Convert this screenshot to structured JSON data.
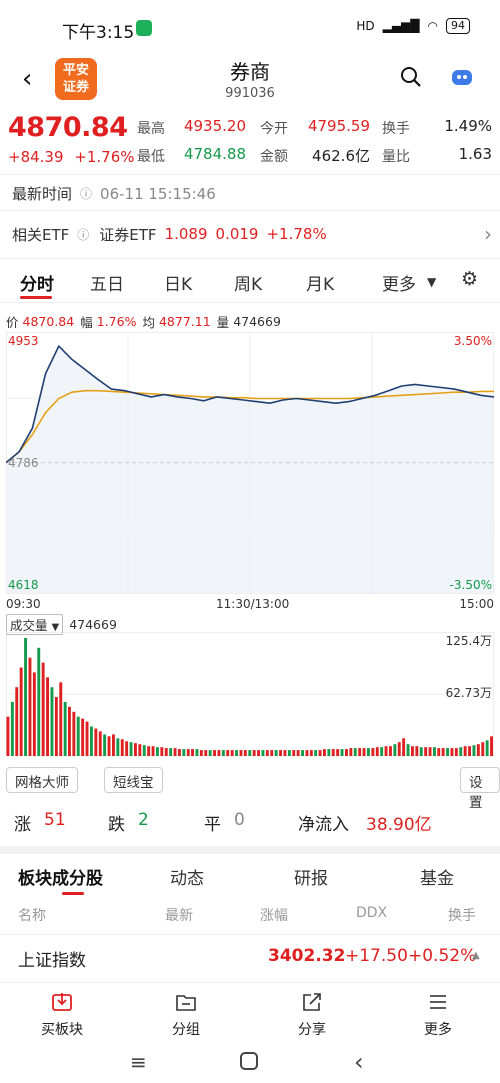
{
  "status_bar": {
    "time": "下午3:15",
    "network": "HD",
    "battery": "94"
  },
  "header": {
    "back": "‹",
    "logo_line1": "平安",
    "logo_line2": "证券",
    "title": "券商",
    "code": "991036"
  },
  "quote": {
    "price": "4870.84",
    "change": "+84.39",
    "change_pct": "+1.76%",
    "high_label": "最高",
    "high": "4935.20",
    "low_label": "最低",
    "low": "4784.88",
    "open_label": "今开",
    "open": "4795.59",
    "amount_label": "金额",
    "amount": "462.6亿",
    "turnover_label": "换手",
    "turnover": "1.49%",
    "volume_ratio_label": "量比",
    "volume_ratio": "1.63"
  },
  "update": {
    "label": "最新时间",
    "time": "06-11 15:15:46"
  },
  "etf": {
    "label": "相关ETF",
    "name": "证券ETF",
    "price": "1.089",
    "change": "0.019",
    "change_pct": "+1.78%"
  },
  "tabs": [
    "分时",
    "五日",
    "日K",
    "周K",
    "月K",
    "更多"
  ],
  "info_line": {
    "price_label": "价",
    "price": "4870.84",
    "range_label": "幅",
    "range": "1.76%",
    "avg_label": "均",
    "avg": "4877.11",
    "vol_label": "量",
    "vol": "474669"
  },
  "chart_data": {
    "type": "line",
    "y_top": "4953",
    "y_mid": "4786",
    "y_bottom": "4618",
    "pct_top": "3.50%",
    "pct_bottom": "-3.50%",
    "x_labels": [
      "09:30",
      "11:30/13:00",
      "15:00"
    ],
    "ylim": [
      4618,
      4953
    ],
    "prev_close": 4786,
    "price_series": [
      4786,
      4800,
      4830,
      4900,
      4935,
      4918,
      4905,
      4892,
      4880,
      4878,
      4874,
      4870,
      4873,
      4870,
      4868,
      4865,
      4870,
      4868,
      4866,
      4864,
      4862,
      4866,
      4868,
      4866,
      4864,
      4862,
      4864,
      4868,
      4872,
      4878,
      4884,
      4886,
      4884,
      4882,
      4880,
      4876,
      4872,
      4870
    ],
    "avg_series": [
      4786,
      4800,
      4822,
      4850,
      4868,
      4876,
      4878,
      4878,
      4877,
      4876,
      4875,
      4874,
      4873,
      4872,
      4871,
      4870,
      4870,
      4869,
      4869,
      4868,
      4868,
      4868,
      4868,
      4868,
      4868,
      4868,
      4868,
      4869,
      4870,
      4871,
      4872,
      4873,
      4874,
      4875,
      4876,
      4876,
      4877,
      4877
    ]
  },
  "volume": {
    "label": "成交量",
    "value": "474669",
    "max_label": "125.4万",
    "mid_label": "62.73万",
    "max_value": 1254000,
    "bars": [
      40,
      55,
      70,
      90,
      120,
      100,
      85,
      110,
      95,
      80,
      70,
      60,
      75,
      55,
      50,
      45,
      40,
      38,
      35,
      30,
      28,
      25,
      22,
      20,
      22,
      18,
      17,
      15,
      14,
      13,
      12,
      11,
      10,
      10,
      9,
      9,
      8,
      8,
      8,
      7,
      7,
      7,
      7,
      7,
      6,
      6,
      6,
      6,
      6,
      6,
      6,
      6,
      6,
      6,
      6,
      6,
      6,
      6,
      6,
      6,
      6,
      6,
      6,
      6,
      6,
      6,
      6,
      6,
      6,
      6,
      6,
      6,
      7,
      7,
      7,
      7,
      7,
      7,
      8,
      8,
      8,
      8,
      8,
      8,
      9,
      9,
      10,
      10,
      12,
      14,
      18,
      12,
      10,
      10,
      9,
      9,
      9,
      9,
      8,
      8,
      8,
      8,
      8,
      9,
      10,
      10,
      11,
      12,
      14,
      16,
      20
    ]
  },
  "tools": {
    "grid_master": "网格大师",
    "short_line": "短线宝",
    "settings": "设置"
  },
  "breadth": {
    "up_label": "涨",
    "up": "51",
    "down_label": "跌",
    "down": "2",
    "flat_label": "平",
    "flat": "0",
    "inflow_label": "净流入",
    "inflow": "38.90亿"
  },
  "section_tabs": [
    "板块成分股",
    "动态",
    "研报",
    "基金"
  ],
  "columns": [
    "名称",
    "最新",
    "涨幅",
    "DDX",
    "换手"
  ],
  "index_row": {
    "name": "上证指数",
    "price": "3402.32",
    "change": "+17.50",
    "change_pct": "+0.52%"
  },
  "bottom_nav": [
    "买板块",
    "分组",
    "分享",
    "更多"
  ],
  "colors": {
    "up": "#e02020",
    "down": "#149a4a",
    "price_line": "#1f3f73",
    "avg_line": "#e6a017"
  }
}
